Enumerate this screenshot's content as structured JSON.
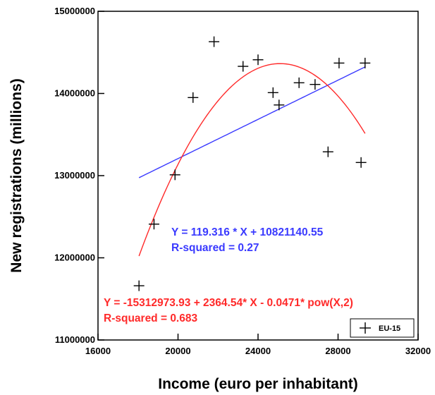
{
  "chart_data": {
    "type": "scatter",
    "title": "",
    "xlabel": "Income (euro per inhabitant)",
    "ylabel": "New registrations (millions)",
    "xlim": [
      16000,
      32000
    ],
    "ylim": [
      11000000,
      15000000
    ],
    "x_ticks": [
      16000,
      20000,
      24000,
      28000,
      32000
    ],
    "x_tick_labels": [
      "16000",
      "20000",
      "24000",
      "28000",
      "32000"
    ],
    "y_ticks": [
      11000000,
      12000000,
      13000000,
      14000000,
      15000000
    ],
    "y_tick_labels": [
      "11000000",
      "12000000",
      "13000000",
      "14000000",
      "15000000"
    ],
    "grid": false,
    "legend_position": "bottom-right",
    "series": [
      {
        "name": "EU-15",
        "marker": "plus",
        "color": "#000000",
        "points": [
          {
            "x": 18050,
            "y": 11660000
          },
          {
            "x": 18800,
            "y": 12410000
          },
          {
            "x": 19850,
            "y": 13010000
          },
          {
            "x": 20750,
            "y": 13950000
          },
          {
            "x": 21800,
            "y": 14630000
          },
          {
            "x": 23250,
            "y": 14330000
          },
          {
            "x": 24000,
            "y": 14410000
          },
          {
            "x": 24750,
            "y": 14010000
          },
          {
            "x": 25050,
            "y": 13860000
          },
          {
            "x": 26050,
            "y": 14130000
          },
          {
            "x": 26850,
            "y": 14110000
          },
          {
            "x": 27500,
            "y": 13290000
          },
          {
            "x": 28050,
            "y": 14370000
          },
          {
            "x": 29150,
            "y": 13160000
          },
          {
            "x": 29350,
            "y": 14370000
          }
        ]
      }
    ],
    "fits": [
      {
        "kind": "linear",
        "color": "#3a3aff",
        "x_range": [
          18050,
          29350
        ],
        "equation": "Y = 119.316 * X + 10821140.55",
        "r_squared": "R-squared = 0.27",
        "coefficients": {
          "slope": 119.316,
          "intercept": 10821140.55
        }
      },
      {
        "kind": "quadratic",
        "color": "#ff2a2a",
        "x_range": [
          18050,
          29350
        ],
        "equation": "Y = -15312973.93 + 2364.54* X - 0.0471* pow(X,2)",
        "r_squared": "R-squared = 0.683",
        "coefficients": {
          "c0": -15312973.93,
          "c1": 2364.54,
          "c2": -0.0471
        }
      }
    ]
  }
}
